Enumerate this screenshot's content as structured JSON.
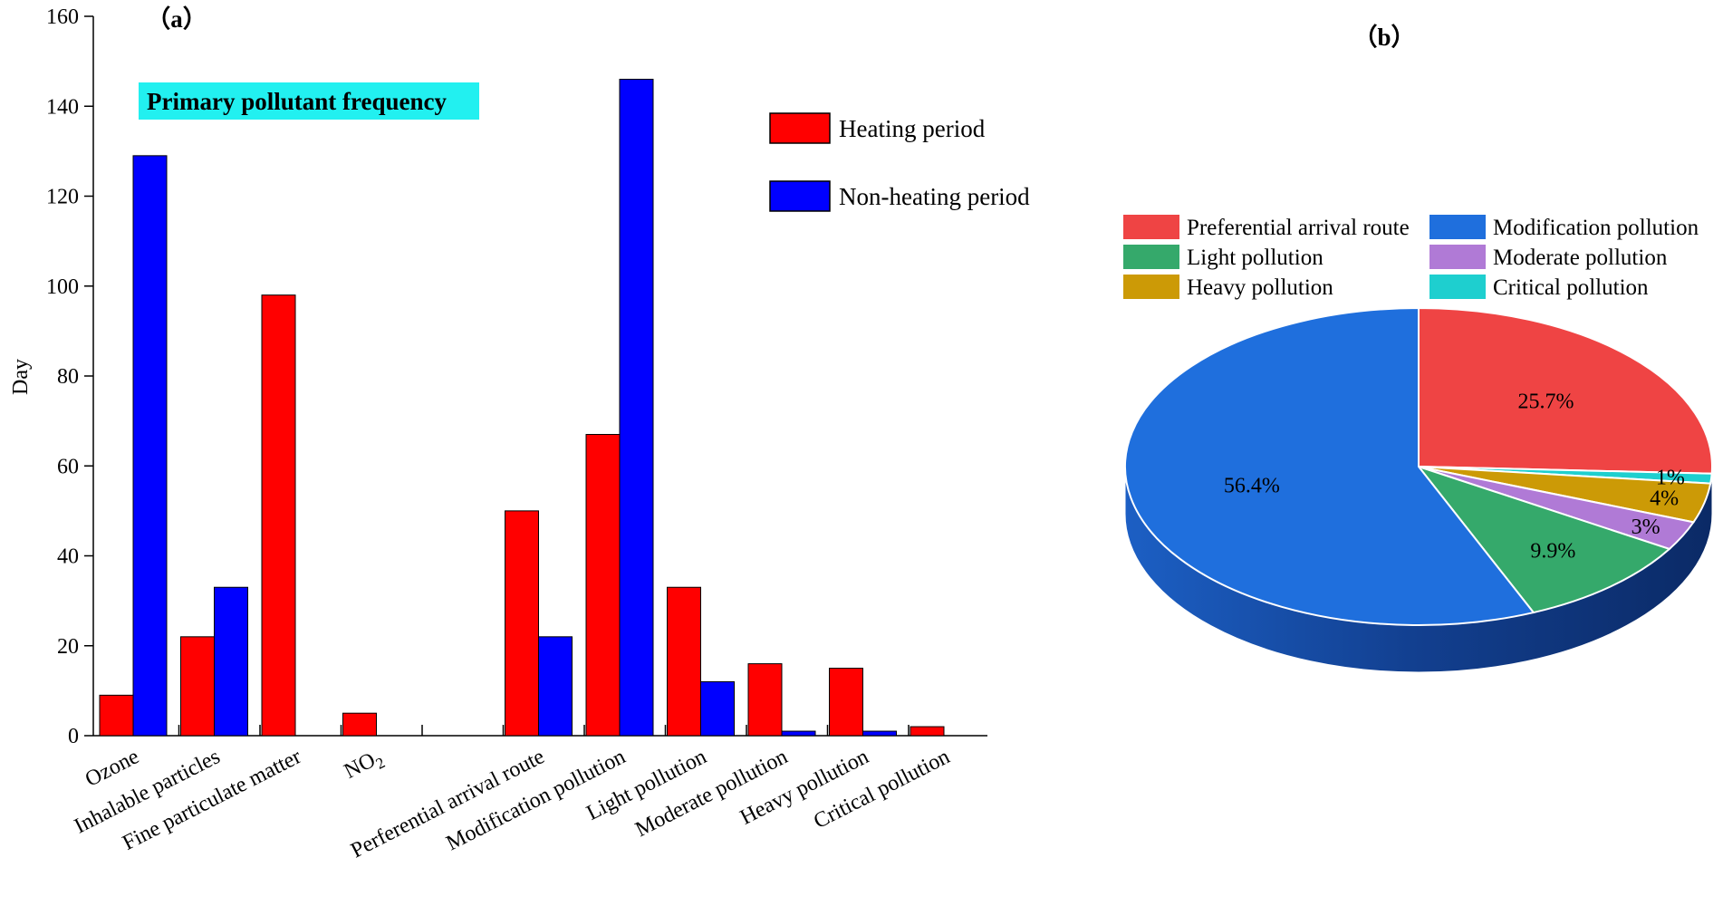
{
  "panel_a_label": "（a）",
  "panel_b_label": "（b）",
  "highlight_box": {
    "text": "Primary pollutant frequency",
    "color": "#22f0f0"
  },
  "colors": {
    "heating": "#ff0000",
    "non_heating": "#0000ff"
  },
  "chart_data": [
    {
      "type": "bar",
      "ylabel": "Day",
      "ylim": [
        0,
        160
      ],
      "yticks": [
        0,
        20,
        40,
        60,
        80,
        100,
        120,
        140,
        160
      ],
      "categories": [
        "Ozone",
        "Inhalable particles",
        "Fine particulate matter",
        "NO₂",
        "",
        "Perferential arrival route",
        "Modification pollution",
        "Light pollution",
        "Moderate pollution",
        "Heavy pollution",
        "Critical pollution"
      ],
      "series": [
        {
          "name": "Heating period",
          "color": "#ff0000",
          "values": [
            9,
            22,
            98,
            5,
            null,
            50,
            67,
            33,
            16,
            15,
            2
          ]
        },
        {
          "name": "Non-heating period",
          "color": "#0000ff",
          "values": [
            129,
            33,
            null,
            null,
            null,
            22,
            146,
            12,
            1,
            1,
            null
          ]
        }
      ],
      "legend_position": "top-right"
    },
    {
      "type": "pie",
      "labels": [
        "Preferential arrival route",
        "Modification  pollution",
        "Light pollution",
        "Moderate pollution",
        "Heavy pollution",
        "Critical pollution"
      ],
      "values": [
        25.7,
        56.4,
        9.9,
        3,
        4,
        1
      ],
      "value_labels": [
        "25.7%",
        "56.4%",
        "9.9%",
        "3%",
        "4%",
        "1%"
      ],
      "colors": [
        "#ef4444",
        "#1f6fdd",
        "#35a96b",
        "#b07ad6",
        "#cc9a06",
        "#1ecfcf"
      ],
      "legend_position": "top"
    }
  ]
}
